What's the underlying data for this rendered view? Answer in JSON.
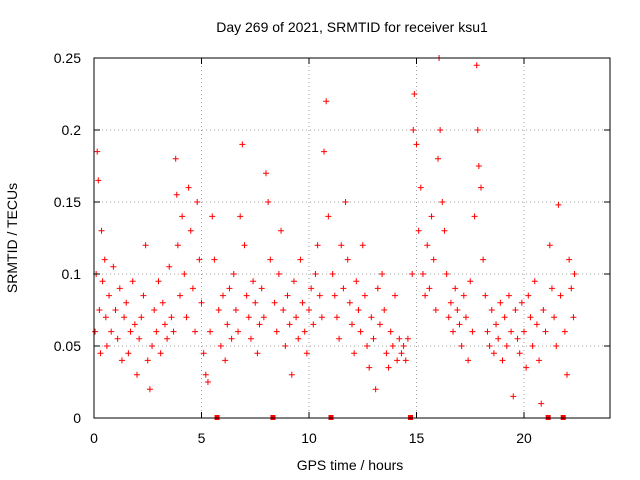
{
  "chart_data": {
    "type": "scatter",
    "title": "Day 269 of 2021, SRMTID for receiver ksu1",
    "xlabel": "GPS time / hours",
    "ylabel": "SRMTID / TECUs",
    "xlim": [
      0,
      24
    ],
    "ylim": [
      0,
      0.25
    ],
    "xticks": [
      0,
      5,
      10,
      15,
      20
    ],
    "xtick_labels": [
      "0",
      "5",
      "10",
      "15",
      "20"
    ],
    "yticks": [
      0,
      0.05,
      0.1,
      0.15,
      0.2,
      0.25
    ],
    "ytick_labels": [
      "0",
      "0.05",
      "0.1",
      "0.15",
      "0.2",
      "0.25"
    ],
    "grid": true,
    "series_color": "#ff0000",
    "marker": "+",
    "data_gap_markers_x": [
      5.7,
      8.3,
      11.0,
      14.7,
      21.1,
      21.8
    ],
    "points": [
      [
        0.05,
        0.06
      ],
      [
        0.1,
        0.1
      ],
      [
        0.15,
        0.185
      ],
      [
        0.2,
        0.165
      ],
      [
        0.25,
        0.075
      ],
      [
        0.3,
        0.045
      ],
      [
        0.35,
        0.13
      ],
      [
        0.4,
        0.095
      ],
      [
        0.5,
        0.11
      ],
      [
        0.55,
        0.07
      ],
      [
        0.6,
        0.05
      ],
      [
        0.7,
        0.085
      ],
      [
        0.8,
        0.06
      ],
      [
        0.9,
        0.105
      ],
      [
        1.0,
        0.075
      ],
      [
        1.1,
        0.055
      ],
      [
        1.2,
        0.09
      ],
      [
        1.3,
        0.04
      ],
      [
        1.4,
        0.07
      ],
      [
        1.5,
        0.08
      ],
      [
        1.6,
        0.045
      ],
      [
        1.7,
        0.06
      ],
      [
        1.8,
        0.095
      ],
      [
        1.9,
        0.065
      ],
      [
        2.0,
        0.03
      ],
      [
        2.1,
        0.055
      ],
      [
        2.2,
        0.07
      ],
      [
        2.3,
        0.085
      ],
      [
        2.4,
        0.12
      ],
      [
        2.5,
        0.04
      ],
      [
        2.6,
        0.02
      ],
      [
        2.7,
        0.05
      ],
      [
        2.8,
        0.075
      ],
      [
        2.9,
        0.06
      ],
      [
        3.0,
        0.095
      ],
      [
        3.1,
        0.045
      ],
      [
        3.2,
        0.08
      ],
      [
        3.3,
        0.065
      ],
      [
        3.4,
        0.055
      ],
      [
        3.5,
        0.105
      ],
      [
        3.6,
        0.07
      ],
      [
        3.7,
        0.06
      ],
      [
        3.8,
        0.18
      ],
      [
        3.85,
        0.155
      ],
      [
        3.9,
        0.12
      ],
      [
        4.0,
        0.085
      ],
      [
        4.1,
        0.14
      ],
      [
        4.2,
        0.1
      ],
      [
        4.3,
        0.07
      ],
      [
        4.4,
        0.16
      ],
      [
        4.5,
        0.13
      ],
      [
        4.6,
        0.09
      ],
      [
        4.7,
        0.06
      ],
      [
        4.8,
        0.15
      ],
      [
        4.9,
        0.11
      ],
      [
        5.0,
        0.08
      ],
      [
        5.1,
        0.045
      ],
      [
        5.2,
        0.03
      ],
      [
        5.3,
        0.025
      ],
      [
        5.4,
        0.06
      ],
      [
        5.5,
        0.14
      ],
      [
        5.6,
        0.11
      ],
      [
        5.8,
        0.075
      ],
      [
        5.9,
        0.05
      ],
      [
        6.0,
        0.085
      ],
      [
        6.1,
        0.04
      ],
      [
        6.2,
        0.065
      ],
      [
        6.3,
        0.09
      ],
      [
        6.4,
        0.055
      ],
      [
        6.5,
        0.1
      ],
      [
        6.6,
        0.075
      ],
      [
        6.7,
        0.06
      ],
      [
        6.8,
        0.14
      ],
      [
        6.9,
        0.19
      ],
      [
        7.0,
        0.12
      ],
      [
        7.1,
        0.085
      ],
      [
        7.2,
        0.07
      ],
      [
        7.3,
        0.055
      ],
      [
        7.4,
        0.095
      ],
      [
        7.5,
        0.08
      ],
      [
        7.6,
        0.045
      ],
      [
        7.7,
        0.065
      ],
      [
        7.8,
        0.09
      ],
      [
        7.9,
        0.07
      ],
      [
        8.0,
        0.17
      ],
      [
        8.1,
        0.15
      ],
      [
        8.2,
        0.11
      ],
      [
        8.4,
        0.08
      ],
      [
        8.5,
        0.06
      ],
      [
        8.6,
        0.1
      ],
      [
        8.7,
        0.13
      ],
      [
        8.8,
        0.075
      ],
      [
        8.9,
        0.05
      ],
      [
        9.0,
        0.085
      ],
      [
        9.1,
        0.065
      ],
      [
        9.2,
        0.03
      ],
      [
        9.3,
        0.095
      ],
      [
        9.4,
        0.07
      ],
      [
        9.5,
        0.055
      ],
      [
        9.6,
        0.11
      ],
      [
        9.7,
        0.08
      ],
      [
        9.8,
        0.06
      ],
      [
        9.9,
        0.045
      ],
      [
        10.0,
        0.075
      ],
      [
        10.1,
        0.09
      ],
      [
        10.2,
        0.065
      ],
      [
        10.3,
        0.1
      ],
      [
        10.4,
        0.12
      ],
      [
        10.5,
        0.085
      ],
      [
        10.6,
        0.07
      ],
      [
        10.7,
        0.185
      ],
      [
        10.8,
        0.22
      ],
      [
        10.9,
        0.14
      ],
      [
        11.1,
        0.1
      ],
      [
        11.2,
        0.085
      ],
      [
        11.3,
        0.07
      ],
      [
        11.4,
        0.055
      ],
      [
        11.5,
        0.12
      ],
      [
        11.6,
        0.09
      ],
      [
        11.7,
        0.15
      ],
      [
        11.8,
        0.11
      ],
      [
        11.9,
        0.08
      ],
      [
        12.0,
        0.065
      ],
      [
        12.1,
        0.045
      ],
      [
        12.2,
        0.095
      ],
      [
        12.3,
        0.075
      ],
      [
        12.4,
        0.06
      ],
      [
        12.5,
        0.12
      ],
      [
        12.6,
        0.085
      ],
      [
        12.7,
        0.05
      ],
      [
        12.8,
        0.035
      ],
      [
        12.9,
        0.07
      ],
      [
        13.0,
        0.055
      ],
      [
        13.1,
        0.02
      ],
      [
        13.2,
        0.09
      ],
      [
        13.3,
        0.065
      ],
      [
        13.4,
        0.1
      ],
      [
        13.5,
        0.075
      ],
      [
        13.6,
        0.045
      ],
      [
        13.7,
        0.035
      ],
      [
        13.8,
        0.06
      ],
      [
        13.9,
        0.05
      ],
      [
        14.0,
        0.085
      ],
      [
        14.1,
        0.04
      ],
      [
        14.2,
        0.055
      ],
      [
        14.3,
        0.045
      ],
      [
        14.4,
        0.05
      ],
      [
        14.5,
        0.04
      ],
      [
        14.6,
        0.055
      ],
      [
        14.8,
        0.1
      ],
      [
        14.85,
        0.2
      ],
      [
        14.9,
        0.225
      ],
      [
        15.0,
        0.19
      ],
      [
        15.1,
        0.13
      ],
      [
        15.2,
        0.16
      ],
      [
        15.3,
        0.1
      ],
      [
        15.4,
        0.085
      ],
      [
        15.5,
        0.12
      ],
      [
        15.6,
        0.09
      ],
      [
        15.7,
        0.14
      ],
      [
        15.8,
        0.11
      ],
      [
        15.9,
        0.075
      ],
      [
        16.0,
        0.18
      ],
      [
        16.05,
        0.25
      ],
      [
        16.1,
        0.2
      ],
      [
        16.2,
        0.15
      ],
      [
        16.3,
        0.13
      ],
      [
        16.4,
        0.1
      ],
      [
        16.5,
        0.07
      ],
      [
        16.6,
        0.08
      ],
      [
        16.7,
        0.06
      ],
      [
        16.8,
        0.09
      ],
      [
        16.9,
        0.075
      ],
      [
        17.0,
        0.065
      ],
      [
        17.1,
        0.05
      ],
      [
        17.2,
        0.085
      ],
      [
        17.3,
        0.07
      ],
      [
        17.4,
        0.04
      ],
      [
        17.5,
        0.095
      ],
      [
        17.6,
        0.06
      ],
      [
        17.7,
        0.14
      ],
      [
        17.8,
        0.245
      ],
      [
        17.85,
        0.2
      ],
      [
        17.9,
        0.175
      ],
      [
        18.0,
        0.16
      ],
      [
        18.1,
        0.11
      ],
      [
        18.2,
        0.085
      ],
      [
        18.3,
        0.06
      ],
      [
        18.4,
        0.05
      ],
      [
        18.5,
        0.075
      ],
      [
        18.6,
        0.045
      ],
      [
        18.7,
        0.065
      ],
      [
        18.8,
        0.055
      ],
      [
        18.9,
        0.08
      ],
      [
        19.0,
        0.04
      ],
      [
        19.1,
        0.07
      ],
      [
        19.2,
        0.05
      ],
      [
        19.3,
        0.085
      ],
      [
        19.4,
        0.06
      ],
      [
        19.5,
        0.015
      ],
      [
        19.6,
        0.075
      ],
      [
        19.7,
        0.055
      ],
      [
        19.8,
        0.045
      ],
      [
        19.9,
        0.08
      ],
      [
        20.0,
        0.06
      ],
      [
        20.1,
        0.035
      ],
      [
        20.2,
        0.085
      ],
      [
        20.3,
        0.07
      ],
      [
        20.4,
        0.05
      ],
      [
        20.5,
        0.095
      ],
      [
        20.6,
        0.065
      ],
      [
        20.7,
        0.04
      ],
      [
        20.8,
        0.01
      ],
      [
        20.9,
        0.075
      ],
      [
        21.0,
        0.06
      ],
      [
        21.2,
        0.12
      ],
      [
        21.3,
        0.09
      ],
      [
        21.4,
        0.07
      ],
      [
        21.5,
        0.05
      ],
      [
        21.6,
        0.148
      ],
      [
        21.7,
        0.085
      ],
      [
        21.9,
        0.06
      ],
      [
        22.0,
        0.03
      ],
      [
        22.1,
        0.11
      ],
      [
        22.2,
        0.09
      ],
      [
        22.3,
        0.07
      ],
      [
        22.35,
        0.1
      ]
    ]
  }
}
